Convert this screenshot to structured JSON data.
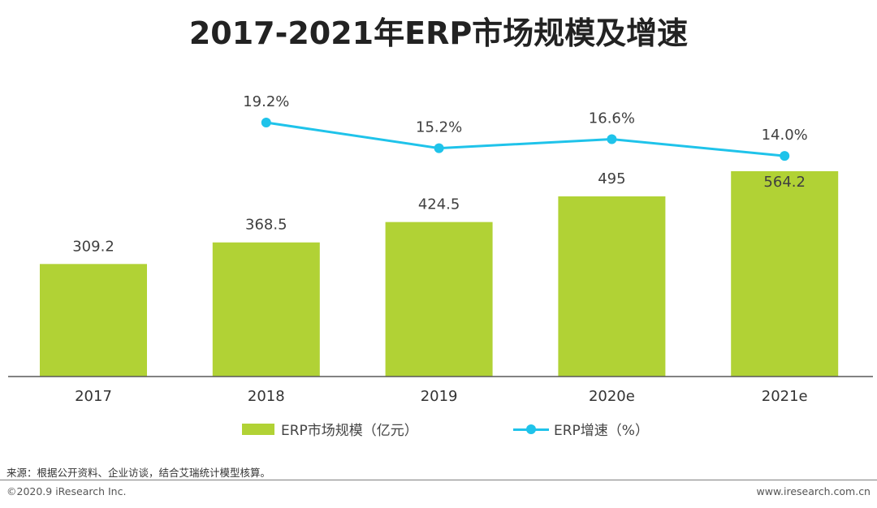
{
  "chart_data": {
    "type": "bar",
    "title": "2017-2021年ERP市场规模及增速",
    "categories": [
      "2017",
      "2018",
      "2019",
      "2020e",
      "2021e"
    ],
    "series": [
      {
        "name": "ERP市场规模（亿元）",
        "type": "bar",
        "values": [
          309.2,
          368.5,
          424.5,
          495,
          564.2
        ],
        "labels": [
          "309.2",
          "368.5",
          "424.5",
          "495",
          "564.2"
        ]
      },
      {
        "name": "ERP增速（%）",
        "type": "line",
        "values": [
          null,
          19.2,
          15.2,
          16.6,
          14.0
        ],
        "labels": [
          "",
          "19.2%",
          "15.2%",
          "16.6%",
          "14.0%"
        ]
      }
    ],
    "legend_position": "bottom",
    "grid": false
  },
  "colors": {
    "bar": "#b1d235",
    "line": "#1fc3ea",
    "axis": "#595959"
  },
  "footer": {
    "source": "来源：根据公开资料、企业访谈，结合艾瑞统计模型核算。",
    "copyright": "©2020.9 iResearch Inc.",
    "website": "www.iresearch.com.cn"
  }
}
